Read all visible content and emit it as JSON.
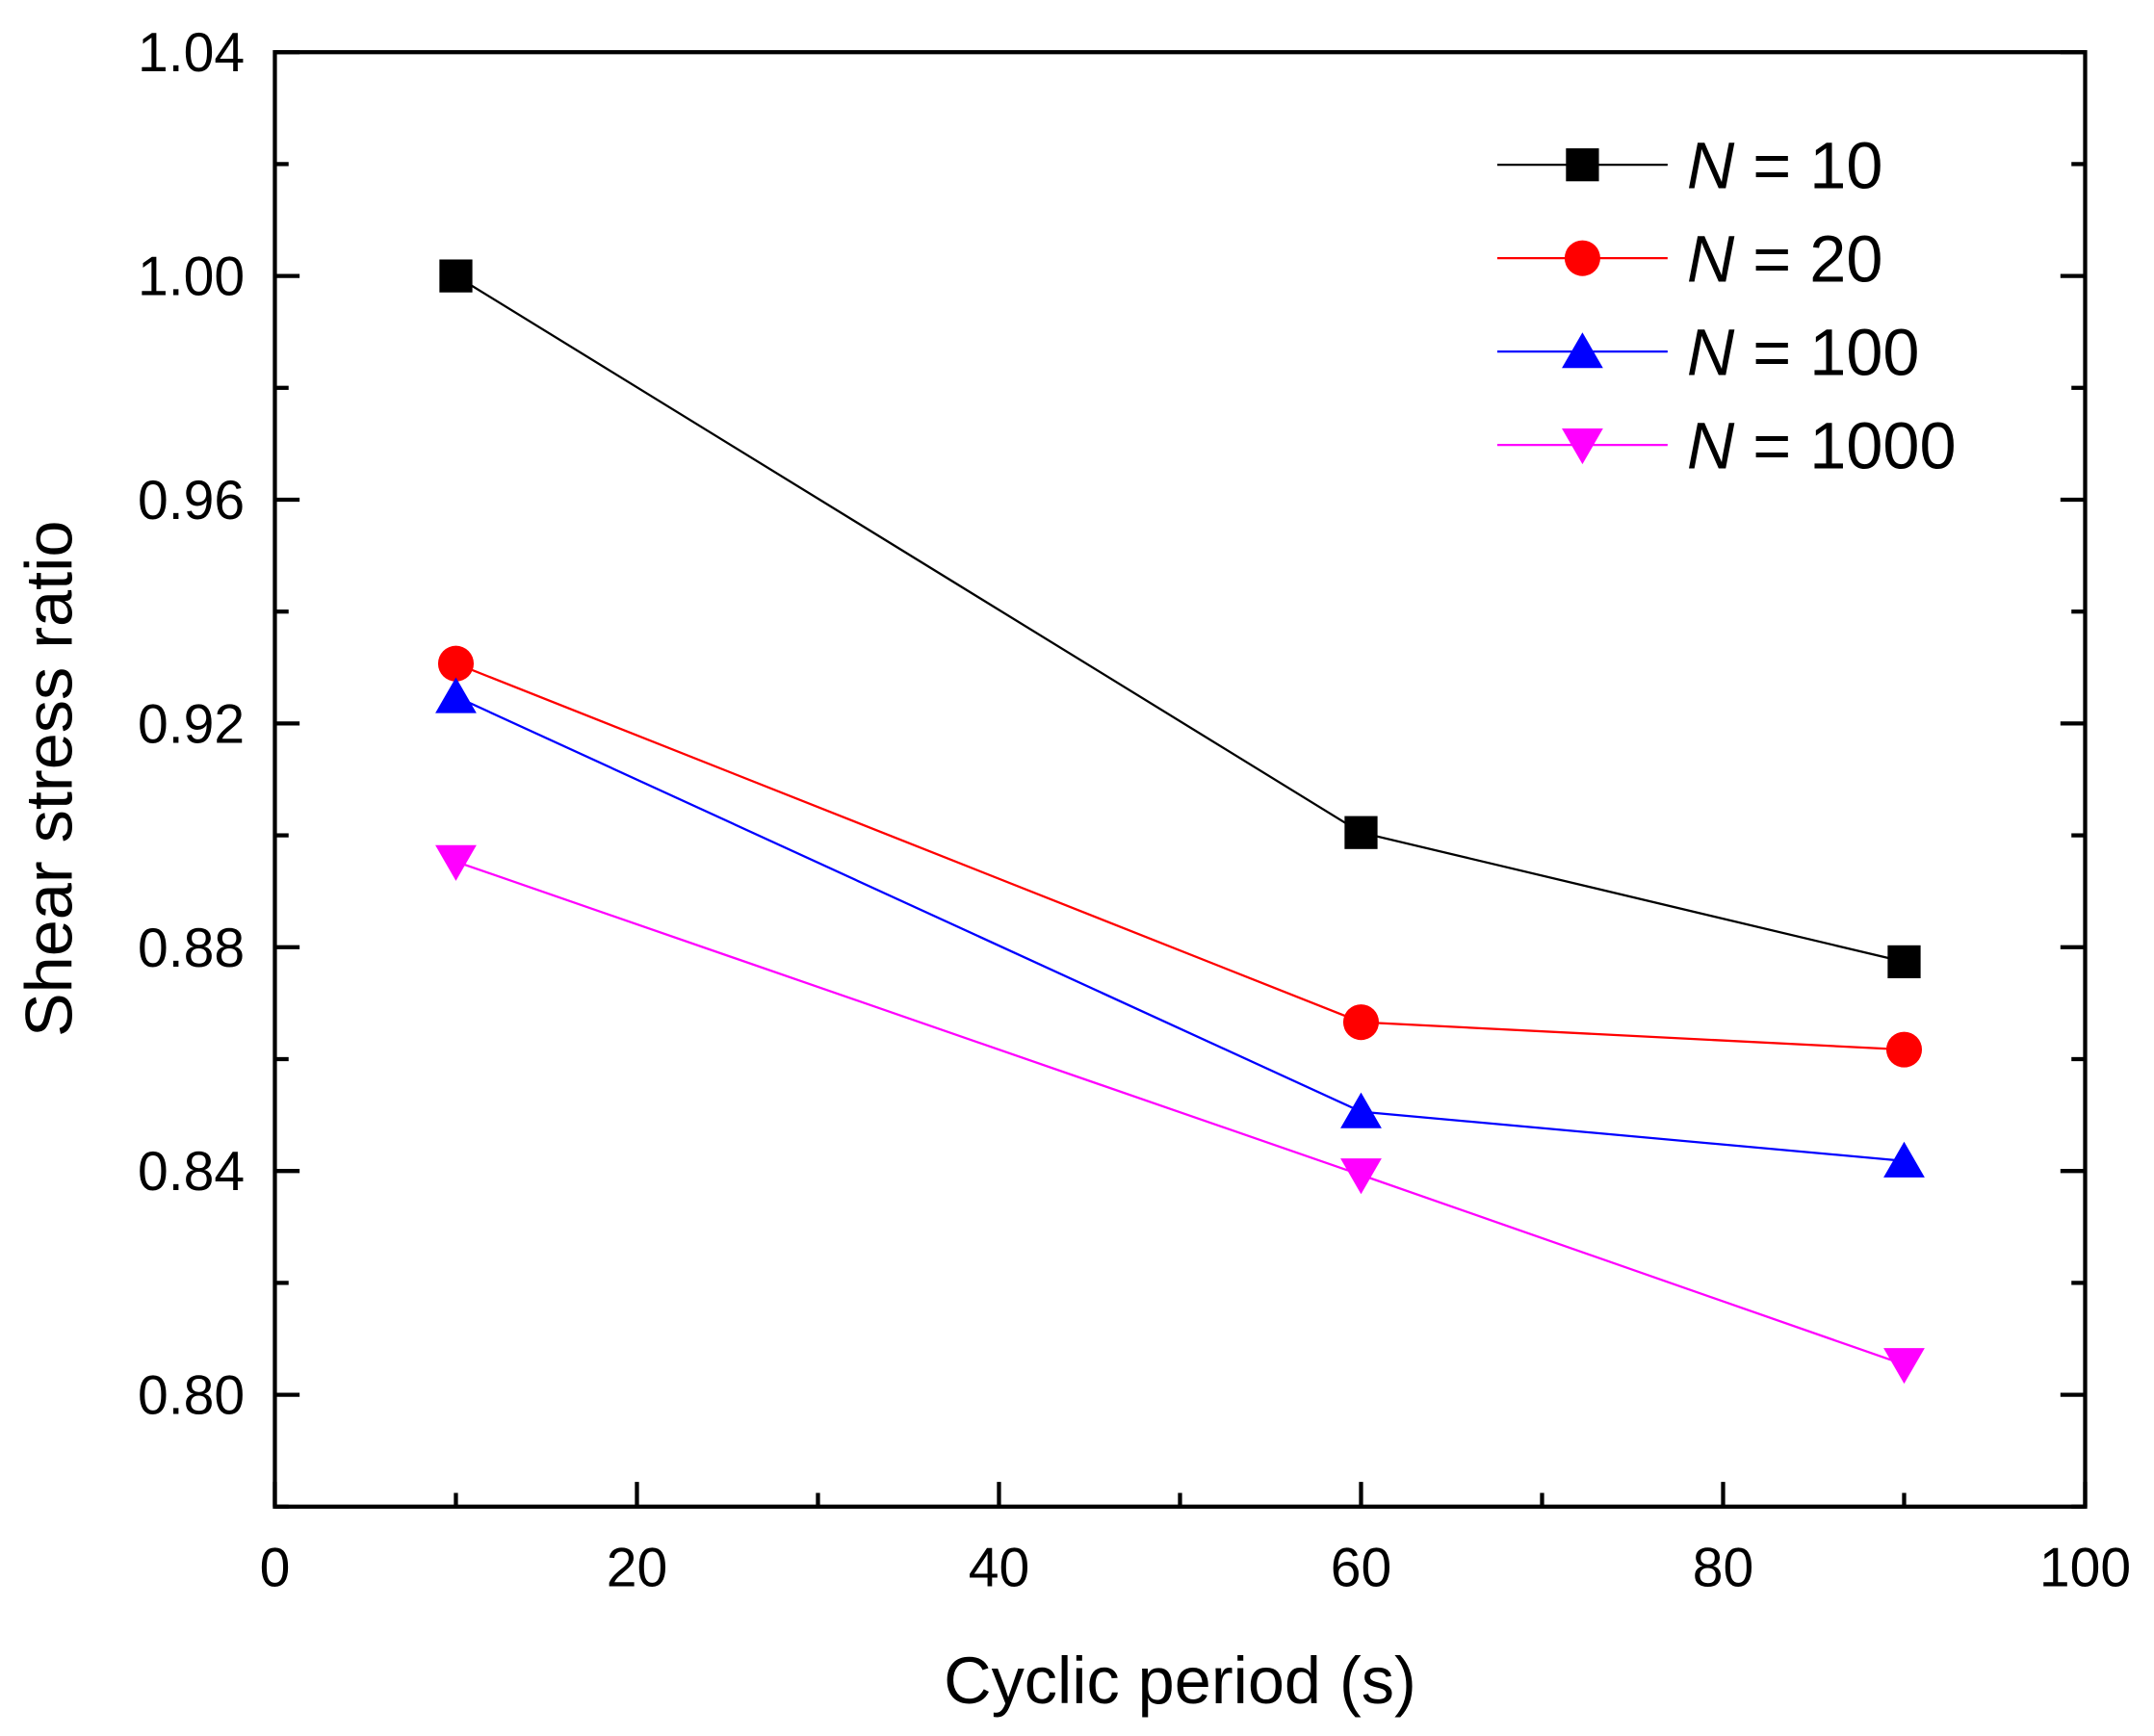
{
  "chart_data": {
    "type": "line",
    "title": "",
    "xlabel": "Cyclic period (s)",
    "ylabel": "Shear stress ratio",
    "xlim": [
      0,
      100
    ],
    "ylim": [
      0.78,
      1.04
    ],
    "xticks": [
      0,
      20,
      40,
      60,
      80,
      100
    ],
    "xtick_labels": [
      "0",
      "20",
      "40",
      "60",
      "80",
      "100"
    ],
    "yticks": [
      0.8,
      0.84,
      0.88,
      0.92,
      0.96,
      1.0,
      1.04
    ],
    "ytick_labels": [
      "0.80",
      "0.84",
      "0.88",
      "0.92",
      "0.96",
      "1.00",
      "1.04"
    ],
    "grid": false,
    "legend_position": "top-right",
    "x": [
      10,
      60,
      90
    ],
    "series": [
      {
        "name": "N = 10",
        "name_var": "N",
        "name_rest": " = 10",
        "color": "#000000",
        "marker": "square",
        "values": [
          1.0,
          0.9005,
          0.8774
        ]
      },
      {
        "name": "N = 20",
        "name_var": "N",
        "name_rest": " = 20",
        "color": "#ff0000",
        "marker": "circle",
        "values": [
          0.9307,
          0.8666,
          0.8617
        ]
      },
      {
        "name": "N = 100",
        "name_var": "N",
        "name_rest": " = 100",
        "color": "#0000ff",
        "marker": "triangle-up",
        "values": [
          0.9248,
          0.8506,
          0.8418
        ]
      },
      {
        "name": "N = 1000",
        "name_var": "N",
        "name_rest": " = 1000",
        "color": "#ff00ff",
        "marker": "triangle-down",
        "values": [
          0.8953,
          0.8393,
          0.8054
        ]
      }
    ]
  }
}
